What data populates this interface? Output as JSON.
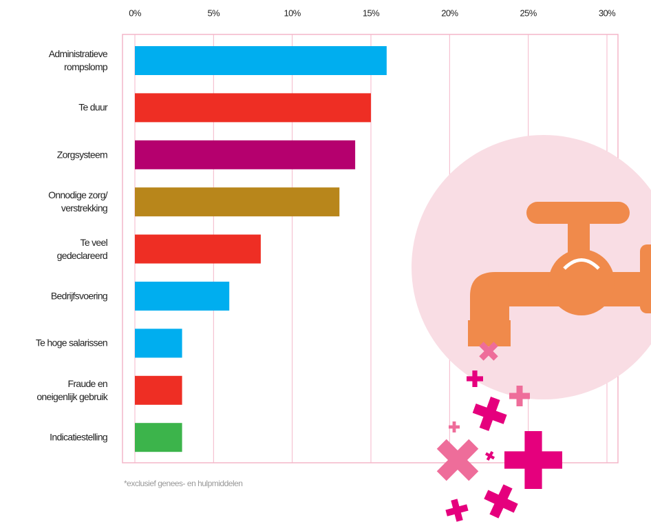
{
  "chart_data": {
    "type": "barh",
    "categories": [
      "Administratieve\nrompslomp",
      "Te duur",
      "Zorgsysteem",
      "Onnodige zorg/\nverstrekking",
      "Te veel\ngedeclareerd",
      "Bedrijfsvoering",
      "Te hoge salarissen",
      "Fraude en\noneigenlijk gebruik",
      "Indicatiestelling"
    ],
    "values": [
      16,
      15,
      14,
      13,
      8,
      6,
      3,
      3,
      3
    ],
    "colors": [
      "#00aeef",
      "#ee2e24",
      "#b5006e",
      "#b8861b",
      "#ee2e24",
      "#00aeef",
      "#00aeef",
      "#ee2e24",
      "#3cb44b"
    ],
    "xlim": [
      0,
      30
    ],
    "xticks": [
      {
        "value": 0,
        "label": "0%"
      },
      {
        "value": 5,
        "label": "5%"
      },
      {
        "value": 10,
        "label": "10%"
      },
      {
        "value": 15,
        "label": "15%"
      },
      {
        "value": 20,
        "label": "20%"
      },
      {
        "value": 25,
        "label": "25%"
      },
      {
        "value": 30,
        "label": "30%"
      }
    ],
    "grid": true,
    "footnote": "*exclusief genees- en hulpmiddelen"
  }
}
